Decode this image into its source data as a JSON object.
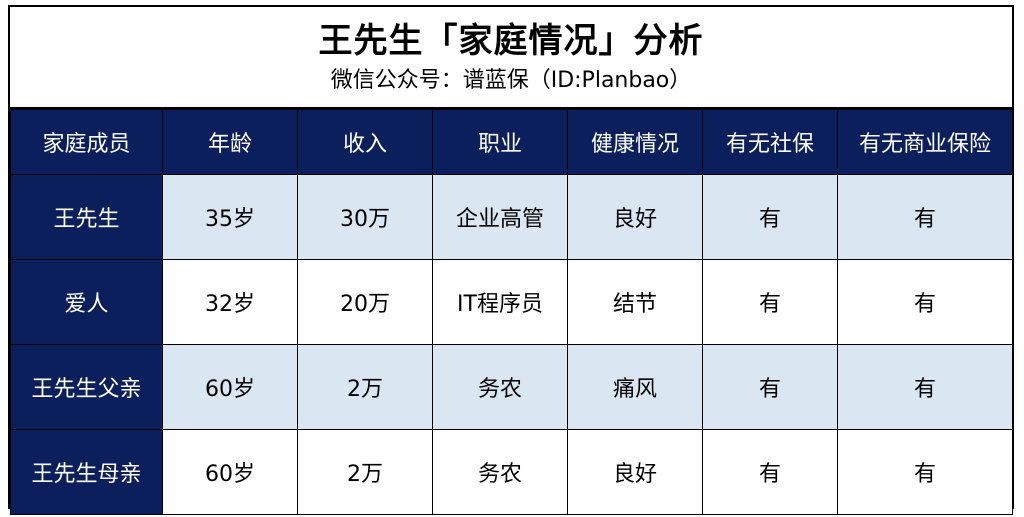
{
  "title": "王先生「家庭情况」分析",
  "subtitle": "微信公众号：谱蓝保（ID:Planbao）",
  "columns": [
    "家庭成员",
    "年龄",
    "收入",
    "职业",
    "健康情况",
    "有无社保",
    "有无商业保险"
  ],
  "rows": [
    {
      "member": "王先生",
      "age": "35岁",
      "income": "30万",
      "job": "企业高管",
      "health": "良好",
      "social": "有",
      "commercial": "有"
    },
    {
      "member": "爱人",
      "age": "32岁",
      "income": "20万",
      "job": "IT程序员",
      "health": "结节",
      "social": "有",
      "commercial": "有"
    },
    {
      "member": "王先生父亲",
      "age": "60岁",
      "income": "2万",
      "job": "务农",
      "health": "痛风",
      "social": "有",
      "commercial": "有"
    },
    {
      "member": "王先生母亲",
      "age": "60岁",
      "income": "2万",
      "job": "务农",
      "health": "良好",
      "social": "有",
      "commercial": "有"
    }
  ],
  "colors": {
    "header_bg": "#0b1f5c",
    "row_shade": "#dbe6f3"
  }
}
